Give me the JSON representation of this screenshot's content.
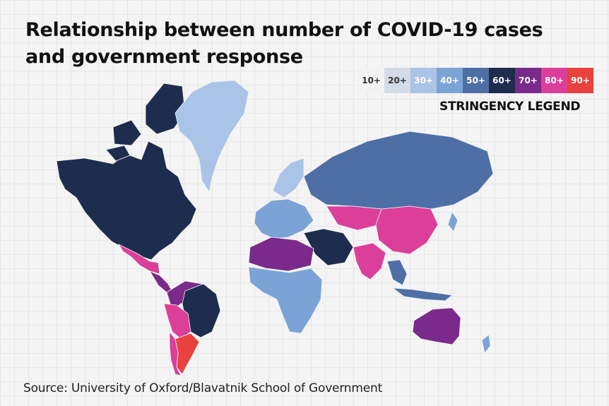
{
  "title": "Relationship between number of COVID-19 cases and government response",
  "legend": {
    "title": "STRINGENCY LEGEND",
    "levels": [
      {
        "label": "10+",
        "color": "#f2f2f2",
        "text_color": "#333333"
      },
      {
        "label": "20+",
        "color": "#d4dbe8",
        "text_color": "#333333"
      },
      {
        "label": "30+",
        "color": "#a9c4e6",
        "text_color": "#ffffff"
      },
      {
        "label": "40+",
        "color": "#7ba3d6",
        "text_color": "#ffffff"
      },
      {
        "label": "50+",
        "color": "#4e6fa6",
        "text_color": "#ffffff"
      },
      {
        "label": "60+",
        "color": "#1e2d4d",
        "text_color": "#ffffff"
      },
      {
        "label": "70+",
        "color": "#7a2a8a",
        "text_color": "#ffffff"
      },
      {
        "label": "80+",
        "color": "#db3f9a",
        "text_color": "#ffffff"
      },
      {
        "label": "90+",
        "color": "#e8413e",
        "text_color": "#ffffff"
      }
    ]
  },
  "map": {
    "regions": [
      {
        "name": "north-america",
        "level": "60+"
      },
      {
        "name": "greenland",
        "level": "30+"
      },
      {
        "name": "mexico",
        "level": "80+"
      },
      {
        "name": "central-america",
        "level": "70+"
      },
      {
        "name": "south-america-north",
        "level": "70+"
      },
      {
        "name": "brazil",
        "level": "60+"
      },
      {
        "name": "peru-bolivia",
        "level": "80+"
      },
      {
        "name": "argentina",
        "level": "90+"
      },
      {
        "name": "chile",
        "level": "80+"
      },
      {
        "name": "europe",
        "level": "40+"
      },
      {
        "name": "scandinavia",
        "level": "30+"
      },
      {
        "name": "russia",
        "level": "50+"
      },
      {
        "name": "central-asia",
        "level": "80+"
      },
      {
        "name": "china",
        "level": "80+"
      },
      {
        "name": "india",
        "level": "80+"
      },
      {
        "name": "middle-east",
        "level": "60+"
      },
      {
        "name": "north-africa",
        "level": "70+"
      },
      {
        "name": "africa",
        "level": "40+"
      },
      {
        "name": "southeast-asia",
        "level": "50+"
      },
      {
        "name": "japan",
        "level": "40+"
      },
      {
        "name": "australia",
        "level": "70+"
      },
      {
        "name": "new-zealand",
        "level": "40+"
      }
    ]
  },
  "source": "Source: University of Oxford/Blavatnik School of Government"
}
